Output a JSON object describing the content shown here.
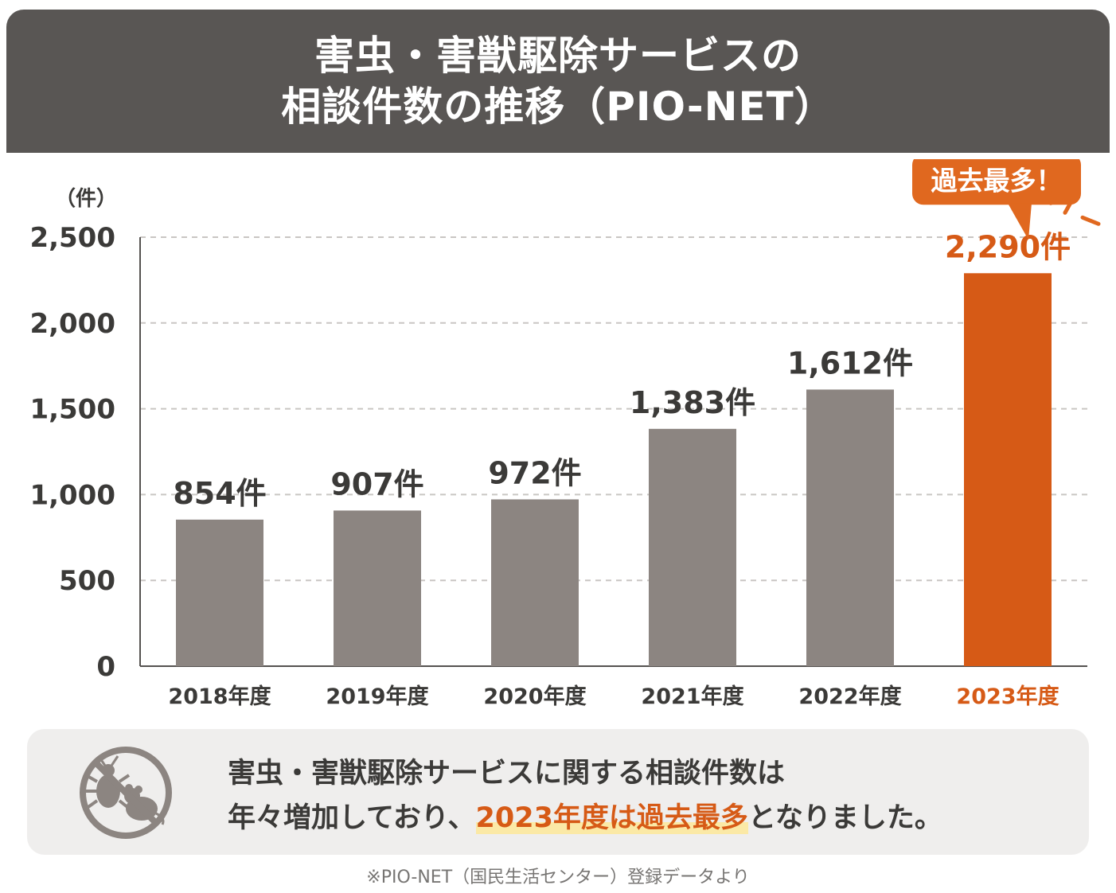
{
  "header": {
    "title_line1": "害虫・害獣駆除サービスの",
    "title_line2": "相談件数の推移（PIO-NET）"
  },
  "chart_data": {
    "type": "bar",
    "title": "害虫・害獣駆除サービスの相談件数の推移（PIO-NET）",
    "ylabel": "（件）",
    "xlabel": "",
    "categories": [
      "2018年度",
      "2019年度",
      "2020年度",
      "2021年度",
      "2022年度",
      "2023年度"
    ],
    "values": [
      854,
      907,
      972,
      1383,
      1612,
      2290
    ],
    "value_labels": [
      "854件",
      "907件",
      "972件",
      "1,383件",
      "1,612件",
      "2,290件"
    ],
    "ylim": [
      0,
      2500
    ],
    "yticks": [
      0,
      500,
      1000,
      1500,
      2000,
      2500
    ],
    "ytick_labels": [
      "0",
      "500",
      "1,000",
      "1,500",
      "2,000",
      "2,500"
    ],
    "grid": true,
    "highlight_index": 5,
    "annotation": "過去最多！",
    "colors": {
      "bar": "#8c8581",
      "highlight": "#d65a16",
      "grid": "#c9c6c3",
      "axis": "#555250"
    }
  },
  "note": {
    "line1": "害虫・害獣駆除サービスに関する相談件数は",
    "line2_prefix": "年々増加しており、",
    "line2_emphasis": "2023年度は過去最多",
    "line2_suffix": "となりました。",
    "icon": "no-pests-icon"
  },
  "source": "※PIO-NET（国民生活センター）登録データより"
}
